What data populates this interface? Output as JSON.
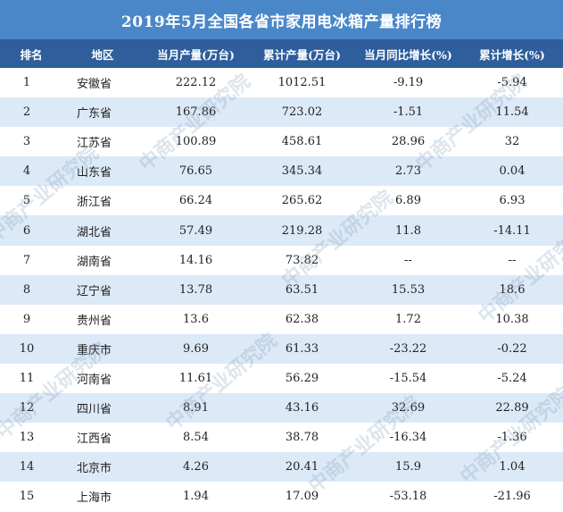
{
  "title": "2019年5月全国各省市家用电冰箱产量排行榜",
  "watermark": "中商产业研究院",
  "chart_data": {
    "type": "table",
    "title": "2019年5月全国各省市家用电冰箱产量排行榜",
    "columns": [
      "排名",
      "地区",
      "当月产量(万台)",
      "累计产量(万台)",
      "当月同比增长(%)",
      "累计增长(%)"
    ],
    "rows": [
      [
        "1",
        "安徽省",
        "222.12",
        "1012.51",
        "-9.19",
        "-5.94"
      ],
      [
        "2",
        "广东省",
        "167.86",
        "723.02",
        "-1.51",
        "11.54"
      ],
      [
        "3",
        "江苏省",
        "100.89",
        "458.61",
        "28.96",
        "32"
      ],
      [
        "4",
        "山东省",
        "76.65",
        "345.34",
        "2.73",
        "0.04"
      ],
      [
        "5",
        "浙江省",
        "66.24",
        "265.62",
        "6.89",
        "6.93"
      ],
      [
        "6",
        "湖北省",
        "57.49",
        "219.28",
        "11.8",
        "-14.11"
      ],
      [
        "7",
        "湖南省",
        "14.16",
        "73.82",
        "--",
        "--"
      ],
      [
        "8",
        "辽宁省",
        "13.78",
        "63.51",
        "15.53",
        "18.6"
      ],
      [
        "9",
        "贵州省",
        "13.6",
        "62.38",
        "1.72",
        "10.38"
      ],
      [
        "10",
        "重庆市",
        "9.69",
        "61.33",
        "-23.22",
        "-0.22"
      ],
      [
        "11",
        "河南省",
        "11.61",
        "56.29",
        "-15.54",
        "-5.24"
      ],
      [
        "12",
        "四川省",
        "8.91",
        "43.16",
        "32.69",
        "22.89"
      ],
      [
        "13",
        "江西省",
        "8.54",
        "38.78",
        "-16.34",
        "-1.36"
      ],
      [
        "14",
        "北京市",
        "4.26",
        "20.41",
        "15.9",
        "1.04"
      ],
      [
        "15",
        "上海市",
        "1.94",
        "17.09",
        "-53.18",
        "-21.96"
      ]
    ]
  }
}
